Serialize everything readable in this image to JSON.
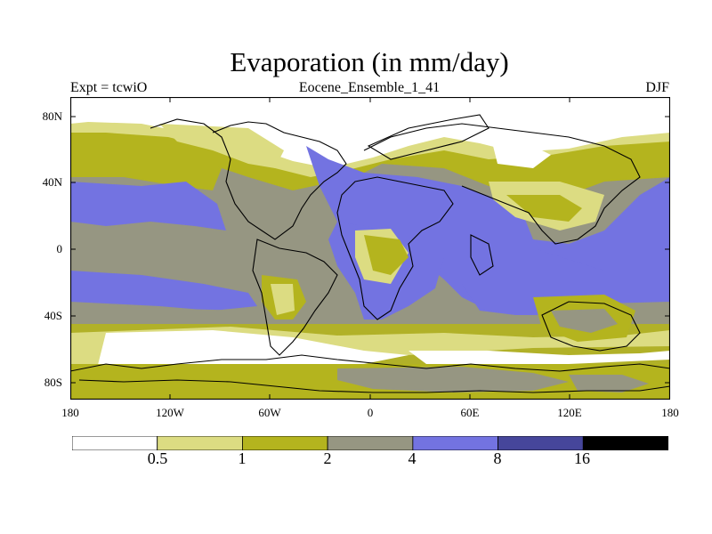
{
  "title": "Evaporation (in mm/day)",
  "expt_label": "Expt = tcwiO",
  "ensemble_label": "Eocene_Ensemble_1_41",
  "season_label": "DJF",
  "y_ticks": [
    "80N",
    "40N",
    "0",
    "40S",
    "80S"
  ],
  "x_ticks": [
    "180",
    "120W",
    "60W",
    "0",
    "60E",
    "120E",
    "180"
  ],
  "colorbar": {
    "boundaries": [
      "0.5",
      "1",
      "2",
      "4",
      "8",
      "16"
    ],
    "colors": [
      "#ffffff",
      "#dcdc82",
      "#b4b41e",
      "#969682",
      "#7373e1",
      "#46469b",
      "#000000"
    ]
  }
}
